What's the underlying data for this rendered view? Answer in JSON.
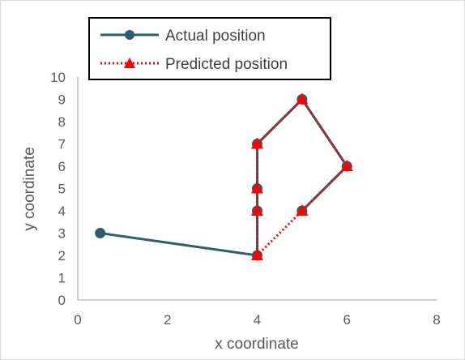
{
  "chart_data": {
    "type": "line",
    "xlabel": "x coordinate",
    "ylabel": "y coordinate",
    "xlim": [
      0,
      8
    ],
    "ylim": [
      0,
      10
    ],
    "xticks": [
      0,
      2,
      4,
      6,
      8
    ],
    "yticks": [
      0,
      1,
      2,
      3,
      4,
      5,
      6,
      7,
      8,
      9,
      10
    ],
    "grid": false,
    "legend_position": "top-left",
    "series": [
      {
        "name": "Actual position",
        "color": "#2e5e6e",
        "line_style": "solid",
        "marker": "circle",
        "x": [
          0.5,
          4,
          4,
          4,
          4,
          5,
          6,
          5
        ],
        "y": [
          3,
          2,
          4,
          5,
          7,
          9,
          6,
          4
        ]
      },
      {
        "name": "Predicted position",
        "color": "#ff0000",
        "line_style": "dotted",
        "marker": "triangle",
        "x": [
          4,
          4,
          4,
          4,
          5,
          6,
          5,
          4
        ],
        "y": [
          2,
          4,
          5,
          7,
          9,
          6,
          4,
          2
        ]
      }
    ]
  }
}
